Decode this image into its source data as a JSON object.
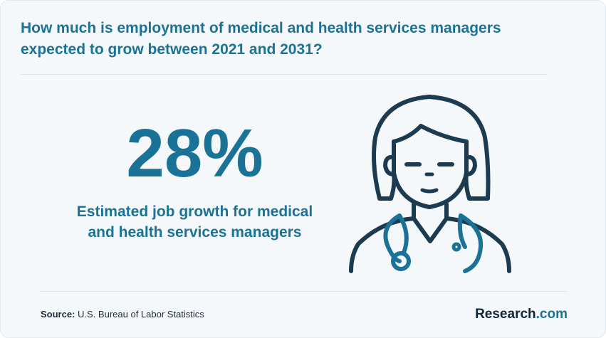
{
  "header": {
    "question": "How much is employment of medical and health services managers expected to grow between 2021 and 2031?"
  },
  "stat": {
    "value": "28%",
    "caption": "Estimated job growth for medical and health services managers"
  },
  "illustration": {
    "icon": "doctor-with-stethoscope-icon",
    "colors": {
      "outline": "#1d3b50",
      "accent": "#1a7396"
    }
  },
  "footer": {
    "source_label": "Source:",
    "source_text": "U.S. Bureau of Labor Statistics",
    "brand_name": "Research",
    "brand_tld": ".com"
  },
  "colors": {
    "accent": "#1a7396",
    "background": "#f5f8fa",
    "text_dark": "#13253a"
  }
}
